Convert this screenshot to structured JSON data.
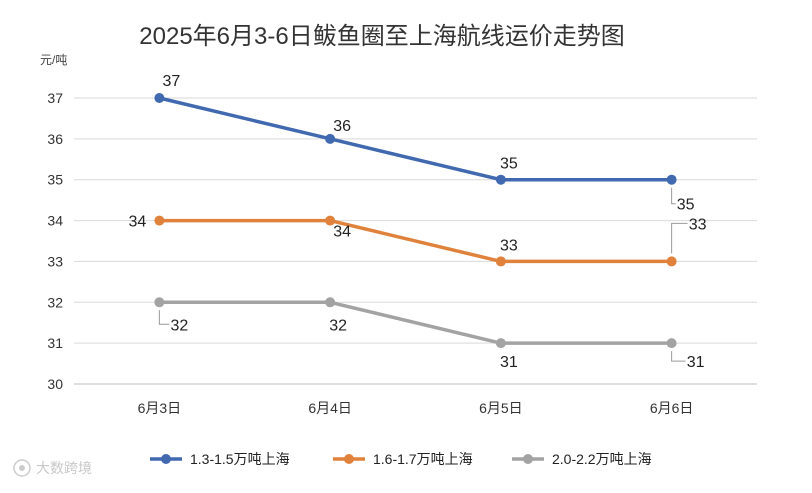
{
  "chart_data": {
    "type": "line",
    "title": "2025年6月3-6日鲅鱼圈至上海航线运价走势图",
    "ylabel": "元/吨",
    "xlabel": "",
    "categories": [
      "6月3日",
      "6月4日",
      "6月5日",
      "6月6日"
    ],
    "ylim": [
      30,
      37
    ],
    "yticks": [
      30,
      31,
      32,
      33,
      34,
      35,
      36,
      37
    ],
    "grid": true,
    "legend_position": "bottom",
    "series": [
      {
        "name": "1.3-1.5万吨上海",
        "color": "#4169b0",
        "values": [
          37,
          36,
          35,
          35
        ]
      },
      {
        "name": "1.6-1.7万吨上海",
        "color": "#e0823c",
        "values": [
          34,
          34,
          33,
          33
        ]
      },
      {
        "name": "2.0-2.2万吨上海",
        "color": "#a3a3a3",
        "values": [
          32,
          32,
          31,
          31
        ]
      }
    ]
  },
  "watermark": "大数跨境",
  "watermark_icon": "brand-logo-icon"
}
